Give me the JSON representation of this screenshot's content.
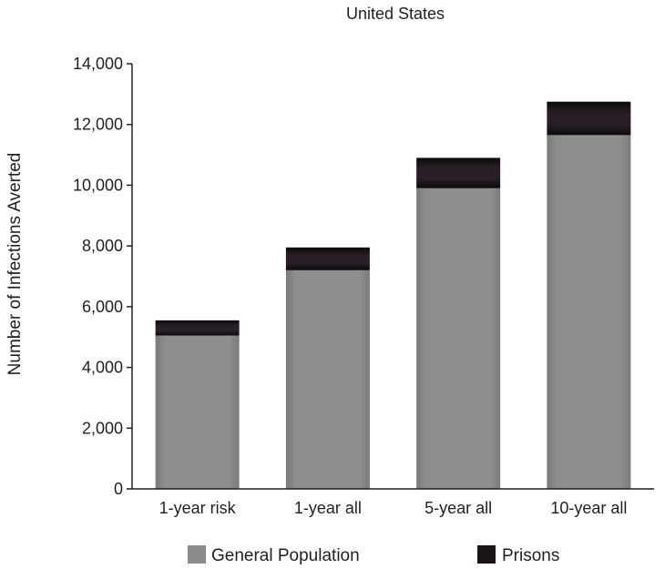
{
  "chart_data": {
    "type": "bar",
    "stacked": true,
    "title": "United States",
    "xlabel": "",
    "ylabel": "Number of Infections Averted",
    "categories": [
      "1-year risk",
      "1-year all",
      "5-year all",
      "10-year all"
    ],
    "series": [
      {
        "name": "General Population",
        "values": [
          5050,
          7200,
          9900,
          11650
        ],
        "color": "#8c8c8c"
      },
      {
        "name": "Prisons",
        "values": [
          500,
          750,
          1000,
          1100
        ],
        "color": "#1a1418"
      }
    ],
    "ylim": [
      0,
      14000
    ],
    "yticks": [
      0,
      2000,
      4000,
      6000,
      8000,
      10000,
      12000,
      14000
    ],
    "ytick_labels": [
      "0",
      "2,000",
      "4,000",
      "6,000",
      "8,000",
      "10,000",
      "12,000",
      "14,000"
    ],
    "grid": false,
    "legend_position": "bottom"
  }
}
